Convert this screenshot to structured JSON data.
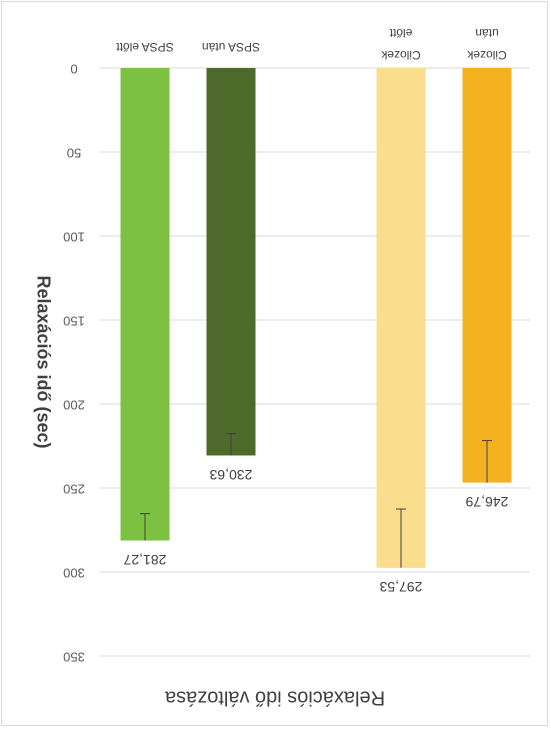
{
  "chart_data": {
    "type": "bar",
    "orientation": "upside-down (image rotated 180°)",
    "title": "Relaxációs idő változása",
    "ylabel": "Relaxációs idő (sec)",
    "xlabel": "",
    "ylim": [
      0,
      350
    ],
    "yticks": [
      0,
      50,
      100,
      150,
      200,
      250,
      300,
      350
    ],
    "yticks_text": [
      "0",
      "50",
      "100",
      "150",
      "200",
      "250",
      "300",
      "350"
    ],
    "grid": true,
    "legend": "none",
    "categories": [
      "SPSA előtt",
      "SPSA után",
      "Cilozek előtt",
      "Cilozek után"
    ],
    "values": [
      281.27,
      230.63,
      297.53,
      246.79
    ],
    "value_labels": [
      "281,27",
      "230,63",
      "297,53",
      "246,79"
    ],
    "errors": [
      16,
      13,
      35,
      25
    ],
    "colors": [
      "#7cc142",
      "#4e6a2a",
      "#fadd8d",
      "#f4b220"
    ]
  }
}
